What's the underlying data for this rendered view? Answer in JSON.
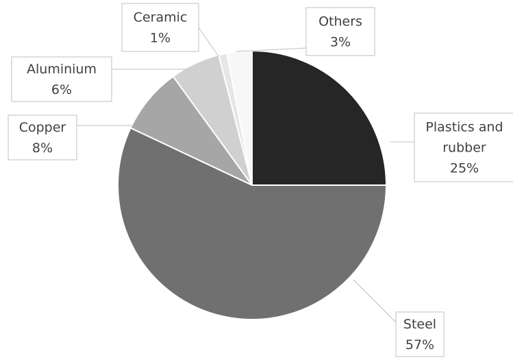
{
  "chart_data": {
    "type": "pie",
    "title": "",
    "start_angle_deg": 0,
    "direction": "clockwise",
    "slices": [
      {
        "label_lines": [
          "Plastics and",
          "rubber"
        ],
        "value": 25,
        "value_label": "25%",
        "color": "#262626"
      },
      {
        "label_lines": [
          "Steel"
        ],
        "value": 57,
        "value_label": "57%",
        "color": "#707070"
      },
      {
        "label_lines": [
          "Copper"
        ],
        "value": 8,
        "value_label": "8%",
        "color": "#a6a6a6"
      },
      {
        "label_lines": [
          "Aluminium"
        ],
        "value": 6,
        "value_label": "6%",
        "color": "#d0d0d0"
      },
      {
        "label_lines": [
          "Ceramic"
        ],
        "value": 1,
        "value_label": "1%",
        "color": "#e6e6e6"
      },
      {
        "label_lines": [
          "Others"
        ],
        "value": 3,
        "value_label": "3%",
        "color": "#f7f7f7"
      }
    ]
  }
}
